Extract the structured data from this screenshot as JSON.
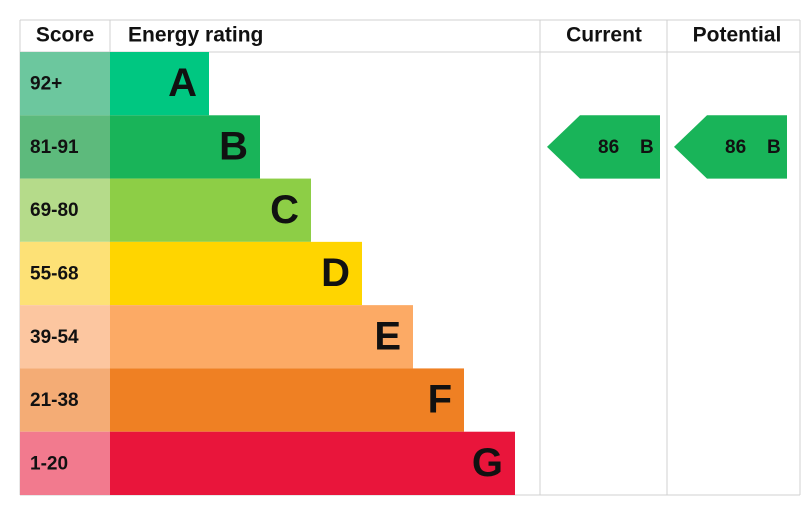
{
  "header": {
    "score": "Score",
    "rating": "Energy rating",
    "current": "Current",
    "potential": "Potential"
  },
  "bands": [
    {
      "score": "92+",
      "letter": "A",
      "color": "#00c781",
      "score_color": "#6cc79e"
    },
    {
      "score": "81-91",
      "letter": "B",
      "color": "#19b459",
      "score_color": "#5dba7c"
    },
    {
      "score": "69-80",
      "letter": "C",
      "color": "#8dce46",
      "score_color": "#b5db8a"
    },
    {
      "score": "55-68",
      "letter": "D",
      "color": "#ffd500",
      "score_color": "#fde176"
    },
    {
      "score": "39-54",
      "letter": "E",
      "color": "#fcaa65",
      "score_color": "#fcc6a0"
    },
    {
      "score": "21-38",
      "letter": "F",
      "color": "#ef8023",
      "score_color": "#f4ac75"
    },
    {
      "score": "1-20",
      "letter": "G",
      "color": "#e9153b",
      "score_color": "#f27a8e"
    }
  ],
  "current": {
    "value": 86,
    "letter": "B"
  },
  "potential": {
    "value": 86,
    "letter": "B"
  }
}
